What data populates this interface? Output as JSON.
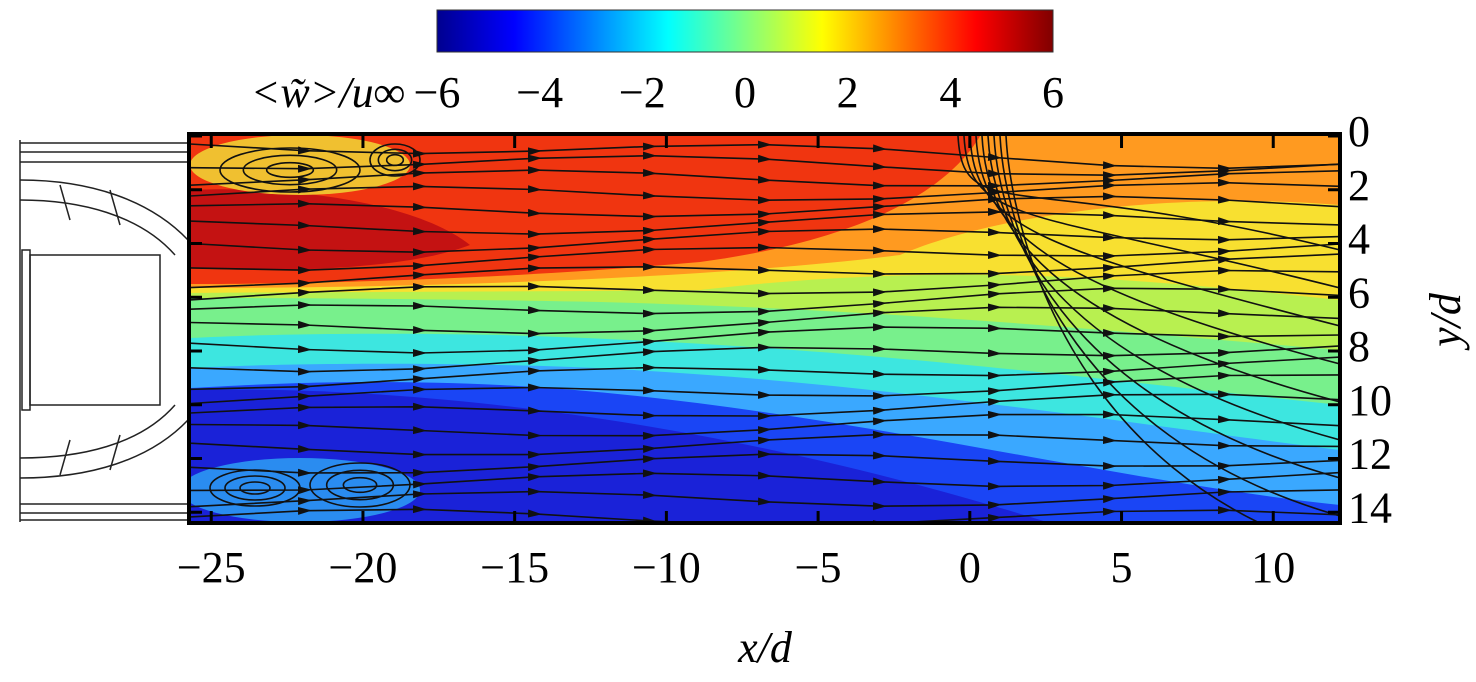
{
  "chart_data": {
    "type": "contour",
    "x_label": "x/d",
    "y_label": "y/d",
    "colorbar_label": "<w̃>/u∞",
    "colormap": "jet",
    "xlim": [
      -25.7,
      12.2
    ],
    "xticks": [
      {
        "value": -25,
        "label": "−25"
      },
      {
        "value": -20,
        "label": "−20"
      },
      {
        "value": -15,
        "label": "−15"
      },
      {
        "value": -10,
        "label": "−10"
      },
      {
        "value": -5,
        "label": "−5"
      },
      0,
      5,
      10
    ],
    "ylim": [
      0,
      14.4
    ],
    "y_inverted": true,
    "yticks": [
      0,
      2,
      4,
      6,
      8,
      10,
      12,
      14
    ],
    "clim": [
      -6,
      6
    ],
    "cticks": [
      {
        "value": -6,
        "label": "−6"
      },
      {
        "value": -4,
        "label": "−4"
      },
      {
        "value": -2,
        "label": "−2"
      },
      0,
      2,
      4,
      6
    ]
  }
}
